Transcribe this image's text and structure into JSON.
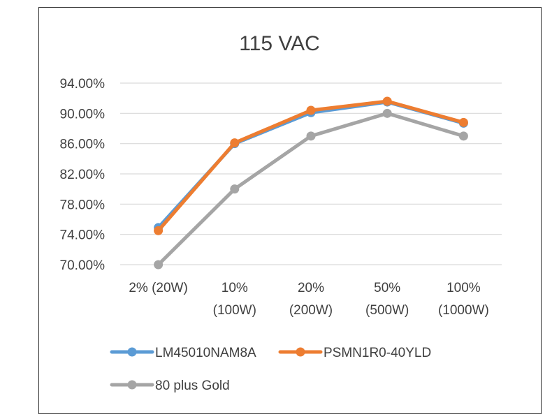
{
  "chart_data": {
    "type": "line",
    "title": "115 VAC",
    "xlabel": "",
    "ylabel": "",
    "categories": [
      [
        "2% (20W)"
      ],
      [
        "10%",
        "(100W)"
      ],
      [
        "20%",
        "(200W)"
      ],
      [
        "50%",
        "(500W)"
      ],
      [
        "100%",
        "(1000W)"
      ]
    ],
    "ylim": [
      70,
      94
    ],
    "yticks": [
      70,
      74,
      78,
      82,
      86,
      90,
      94
    ],
    "ytick_labels": [
      "70.00%",
      "74.00%",
      "78.00%",
      "82.00%",
      "86.00%",
      "90.00%",
      "94.00%"
    ],
    "grid": true,
    "legend_position": "bottom",
    "series": [
      {
        "name": "LM45010NAM8A",
        "color": "#5b9bd5",
        "values": [
          74.9,
          86.0,
          90.1,
          91.5,
          88.7
        ]
      },
      {
        "name": "PSMN1R0-40YLD",
        "color": "#ed7d31",
        "values": [
          74.5,
          86.1,
          90.4,
          91.6,
          88.8
        ]
      },
      {
        "name": "80 plus Gold",
        "color": "#a5a5a5",
        "values": [
          70.0,
          80.0,
          87.0,
          90.0,
          87.0
        ]
      }
    ]
  }
}
